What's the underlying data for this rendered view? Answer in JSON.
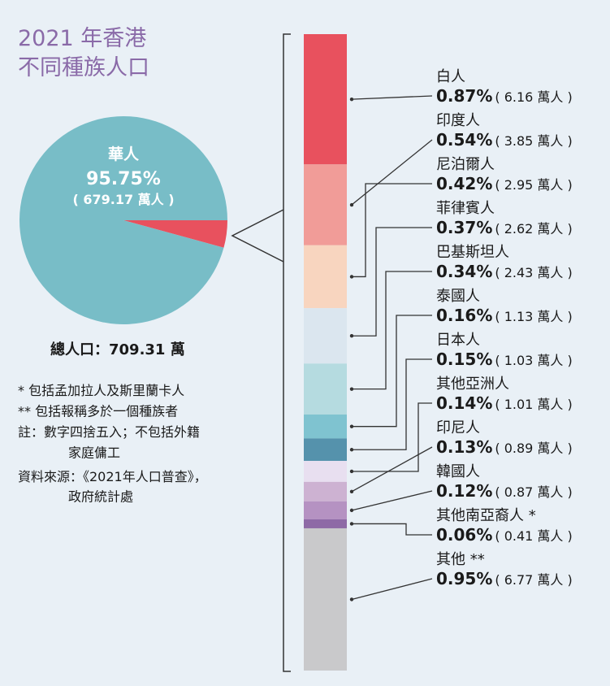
{
  "chart_data": [
    {
      "type": "pie",
      "title": [
        "2021 年香港",
        "不同種族人口"
      ],
      "categories": [
        "華人",
        null
      ],
      "values": [
        95.75,
        4.25
      ],
      "value_labels": [
        "95.75%",
        null
      ],
      "population_labels": [
        "( 679.17 萬人 )",
        null
      ],
      "colors": [
        "#78bdc7",
        "#e8515e"
      ],
      "total_label": "總人口：709.31 萬"
    },
    {
      "type": "bar",
      "stacked": true,
      "categories": [
        "白人",
        "印度人",
        "尼泊爾人",
        "菲律賓人",
        "巴基斯坦人",
        "泰國人",
        "日本人",
        "其他亞洲人",
        "印尼人",
        "韓國人",
        "其他南亞裔人 *",
        "其他 **"
      ],
      "values": [
        0.87,
        0.54,
        0.42,
        0.37,
        0.34,
        0.16,
        0.15,
        0.14,
        0.13,
        0.12,
        0.06,
        0.95
      ],
      "value_labels": [
        "0.87%",
        "0.54%",
        "0.42%",
        "0.37%",
        "0.34%",
        "0.16%",
        "0.15%",
        "0.14%",
        "0.13%",
        "0.12%",
        "0.06%",
        "0.95%"
      ],
      "population_labels": [
        "( 6.16 萬人 )",
        "( 3.85 萬人 )",
        "( 2.95 萬人 )",
        "( 2.62 萬人 )",
        "( 2.43 萬人 )",
        "( 1.13 萬人 )",
        "( 1.03 萬人 )",
        "( 1.01 萬人 )",
        "( 0.89 萬人 )",
        "( 0.87 萬人 )",
        "( 0.41 萬人 )",
        "( 6.77 萬人 )"
      ],
      "colors": [
        "#e8515e",
        "#f19c98",
        "#f8d5bf",
        "#dbe6ef",
        "#b5dbe0",
        "#7fc3d0",
        "#5592ac",
        "#e8dff0",
        "#cdb2d2",
        "#b592c2",
        "#8e6aa6",
        "#c9c9cb"
      ]
    }
  ],
  "notes": [
    "* 包括孟加拉人及斯里蘭卡人",
    "** 包括報稱多於一個種族者",
    "註：數字四捨五入；不包括外籍",
    "家庭傭工",
    "資料來源：《2021年人口普查》，",
    "政府統計處"
  ]
}
